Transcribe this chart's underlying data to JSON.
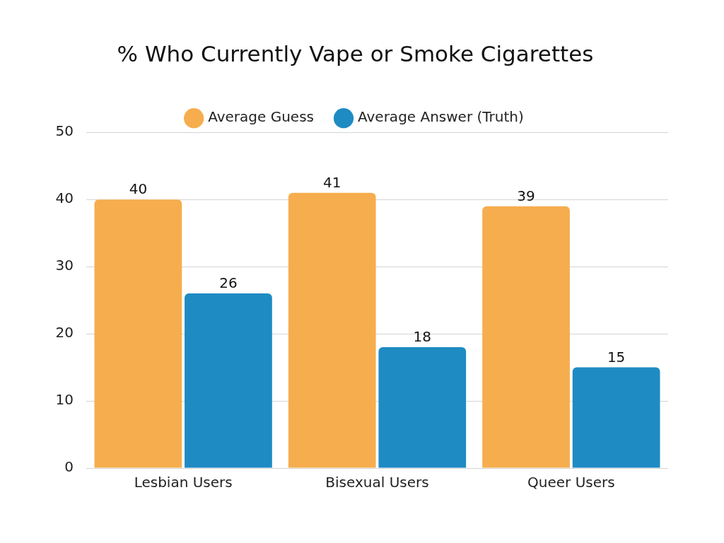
{
  "chart_data": {
    "type": "bar",
    "title": "% Who Currently Vape or Smoke Cigarettes",
    "categories": [
      "Lesbian Users",
      "Bisexual Users",
      "Queer Users"
    ],
    "series": [
      {
        "name": "Average Guess",
        "color": "#f6ad4e",
        "values": [
          40,
          41,
          39
        ]
      },
      {
        "name": "Average Answer (Truth)",
        "color": "#1f8bc3",
        "values": [
          26,
          18,
          15
        ]
      }
    ],
    "ylim": [
      0,
      50
    ],
    "yticks": [
      0,
      10,
      20,
      30,
      40,
      50
    ],
    "grid": "y",
    "legend": "top",
    "data_labels": true
  }
}
